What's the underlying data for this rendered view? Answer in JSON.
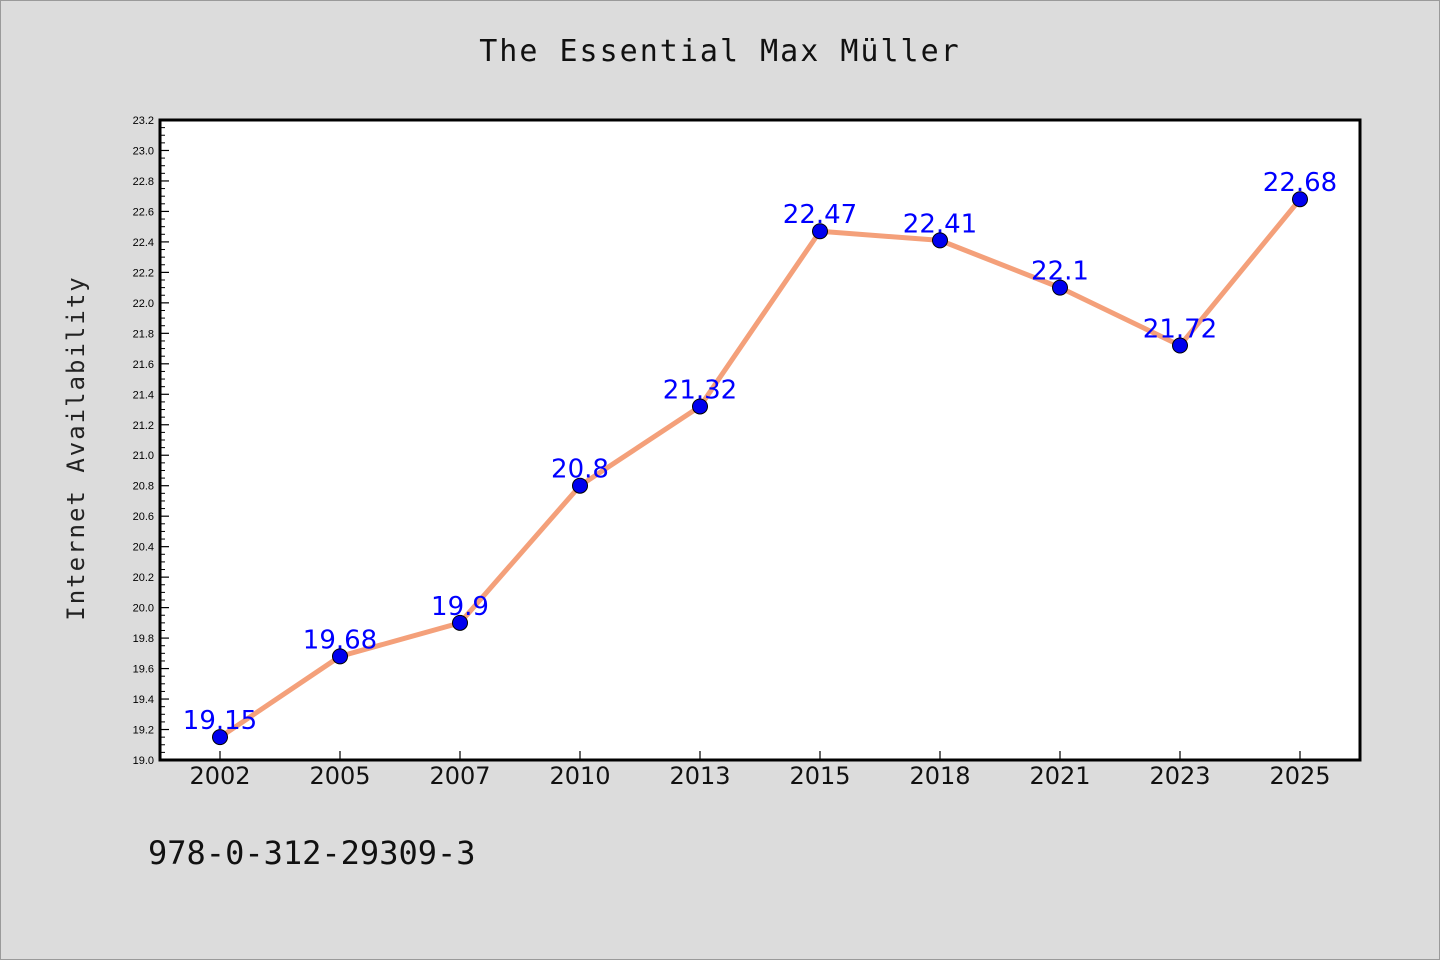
{
  "colors": {
    "background": "#dcdcdc",
    "plot_background": "#ffffff",
    "line": "#f4a07a",
    "marker": "#0000ee",
    "label": "#0000ff"
  },
  "chart_data": {
    "type": "line",
    "title": "The Essential Max Müller",
    "xlabel": "",
    "ylabel": "Internet Availability",
    "categories": [
      "2002",
      "2005",
      "2007",
      "2010",
      "2013",
      "2015",
      "2018",
      "2021",
      "2023",
      "2025"
    ],
    "series": [
      {
        "values": [
          19.15,
          19.68,
          19.9,
          20.8,
          21.32,
          22.47,
          22.41,
          22.1,
          21.72,
          22.68
        ],
        "data_labels": [
          "19.15",
          "19.68",
          "19.9",
          "20.8",
          "21.32",
          "22.47",
          "22.41",
          "22.1",
          "21.72",
          "22.68"
        ]
      }
    ],
    "ylim": [
      19.0,
      23.2
    ],
    "yticks": [
      "19.0",
      "19.2",
      "19.4",
      "19.6",
      "19.8",
      "20.0",
      "20.2",
      "20.4",
      "20.6",
      "20.8",
      "21.0",
      "21.2",
      "21.4",
      "21.6",
      "21.8",
      "22.0",
      "22.2",
      "22.4",
      "22.6",
      "22.8",
      "23.0",
      "23.2"
    ],
    "grid": false,
    "legend": "none"
  },
  "footnote": "978-0-312-29309-3"
}
